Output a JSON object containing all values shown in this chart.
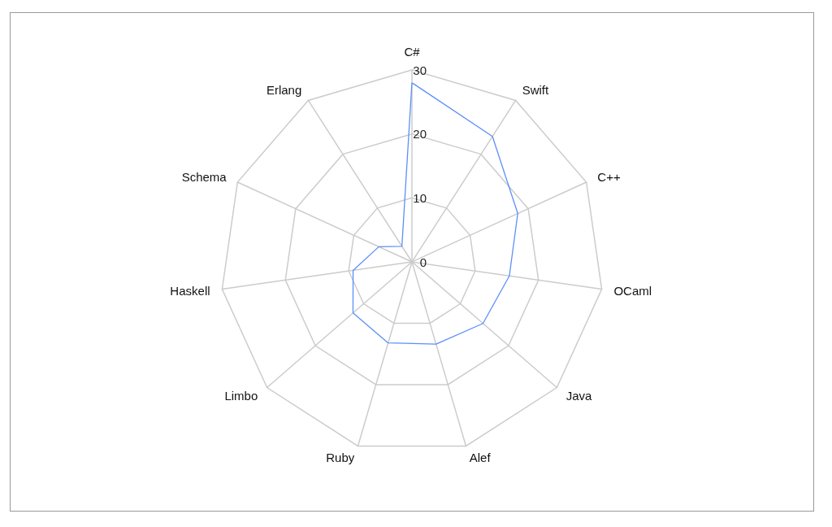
{
  "chart_data": {
    "type": "radar",
    "categories": [
      "C#",
      "Swift",
      "C++",
      "OCaml",
      "Java",
      "Alef",
      "Ruby",
      "Limbo",
      "Haskell",
      "Schema",
      "Erlang"
    ],
    "series": [
      {
        "color": "#5b8ff9",
        "values": [
          28,
          23.3,
          18.2,
          15.4,
          14.7,
          13.4,
          13.2,
          12.2,
          9.3,
          5.7,
          2.9
        ]
      }
    ],
    "ylim": [
      0,
      30
    ],
    "yticks": [
      0,
      10,
      20,
      30
    ],
    "marker": "none",
    "line_style": "solid"
  }
}
